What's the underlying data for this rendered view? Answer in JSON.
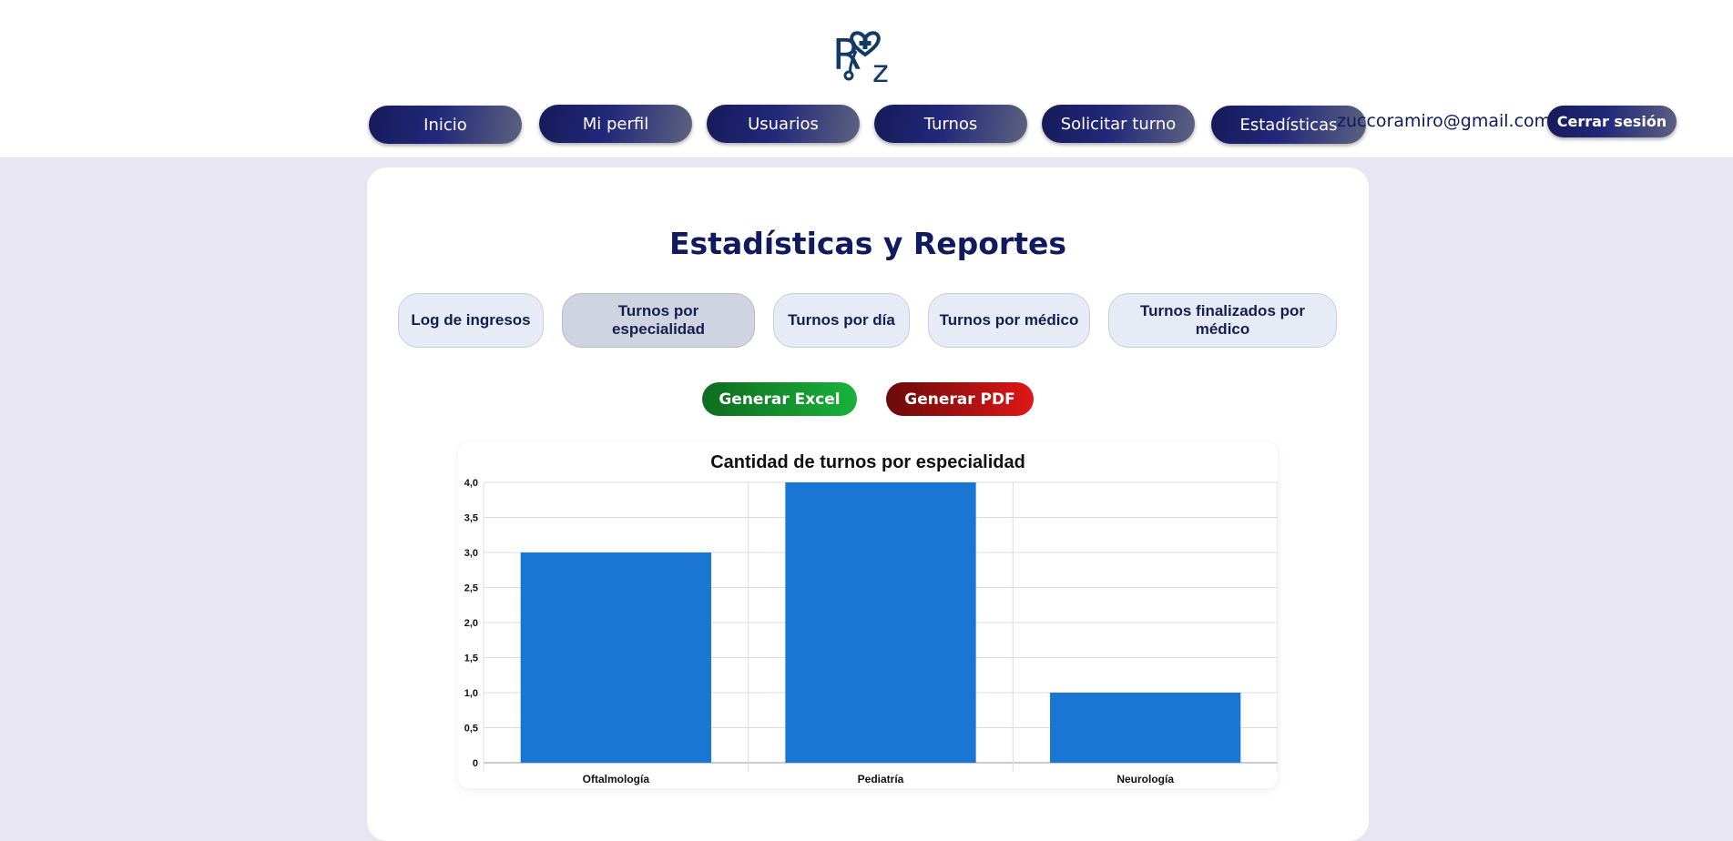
{
  "header": {
    "logo_text": "RZ",
    "nav": [
      {
        "label": "Inicio"
      },
      {
        "label": "Mi perfil"
      },
      {
        "label": "Usuarios"
      },
      {
        "label": "Turnos"
      },
      {
        "label": "Solicitar turno"
      },
      {
        "label": "Estadísticas"
      }
    ],
    "user_email": "zuccoramiro@gmail.com",
    "logout_label": "Cerrar sesión"
  },
  "main": {
    "title": "Estadísticas y Reportes",
    "tabs": [
      {
        "label": "Log de ingresos",
        "active": false
      },
      {
        "label": "Turnos por especialidad",
        "active": true
      },
      {
        "label": "Turnos por día",
        "active": false
      },
      {
        "label": "Turnos por médico",
        "active": false
      },
      {
        "label": "Turnos finalizados por médico",
        "active": false
      }
    ],
    "excel_label": "Generar Excel",
    "pdf_label": "Generar PDF"
  },
  "colors": {
    "nav_gradient": "#161a5a",
    "bar": "#1976d2",
    "excel": "#19b33b",
    "pdf": "#e01717"
  },
  "chart_data": {
    "type": "bar",
    "title": "Cantidad de turnos por especialidad",
    "categories": [
      "Oftalmología",
      "Pediatría",
      "Neurología"
    ],
    "values": [
      3,
      4,
      1
    ],
    "ylim": [
      0,
      4
    ],
    "yticks": [
      "0",
      "0,5",
      "1,0",
      "1,5",
      "2,0",
      "2,5",
      "3,0",
      "3,5",
      "4,0"
    ],
    "grid": true,
    "xlabel": "",
    "ylabel": ""
  }
}
